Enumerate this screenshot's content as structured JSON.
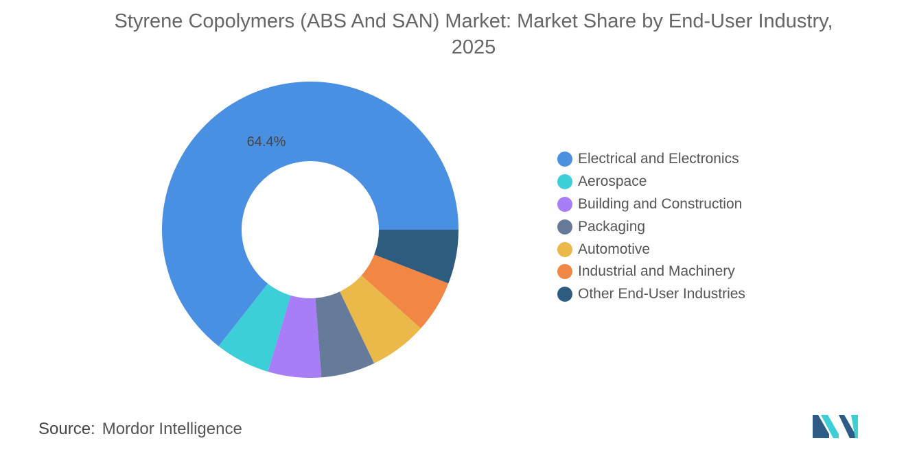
{
  "chart_data": {
    "type": "pie",
    "title": "Styrene Copolymers (ABS And SAN) Market: Market Share by End-User Industry, 2025",
    "slices": [
      {
        "name": "Electrical and Electronics",
        "value": 64.4,
        "label": "64.4%",
        "color": "#4a90e2"
      },
      {
        "name": "Aerospace",
        "value": 6.0,
        "label": "",
        "color": "#3ccfd8"
      },
      {
        "name": "Building and Construction",
        "value": 5.8,
        "label": "",
        "color": "#a77ef6"
      },
      {
        "name": "Packaging",
        "value": 5.9,
        "label": "",
        "color": "#667b99"
      },
      {
        "name": "Automotive",
        "value": 6.3,
        "label": "",
        "color": "#ebb84a"
      },
      {
        "name": "Industrial and Machinery",
        "value": 5.7,
        "label": "",
        "color": "#f28645"
      },
      {
        "name": "Other End-User Industries",
        "value": 5.9,
        "label": "",
        "color": "#2e5c7f"
      }
    ],
    "legend_position": "right"
  },
  "source": {
    "label": "Source:",
    "value": "Mordor Intelligence"
  },
  "logo": {
    "icon": "mordor-intelligence-logo-icon",
    "colors": [
      "#2f5c86",
      "#3ccfd8"
    ]
  }
}
